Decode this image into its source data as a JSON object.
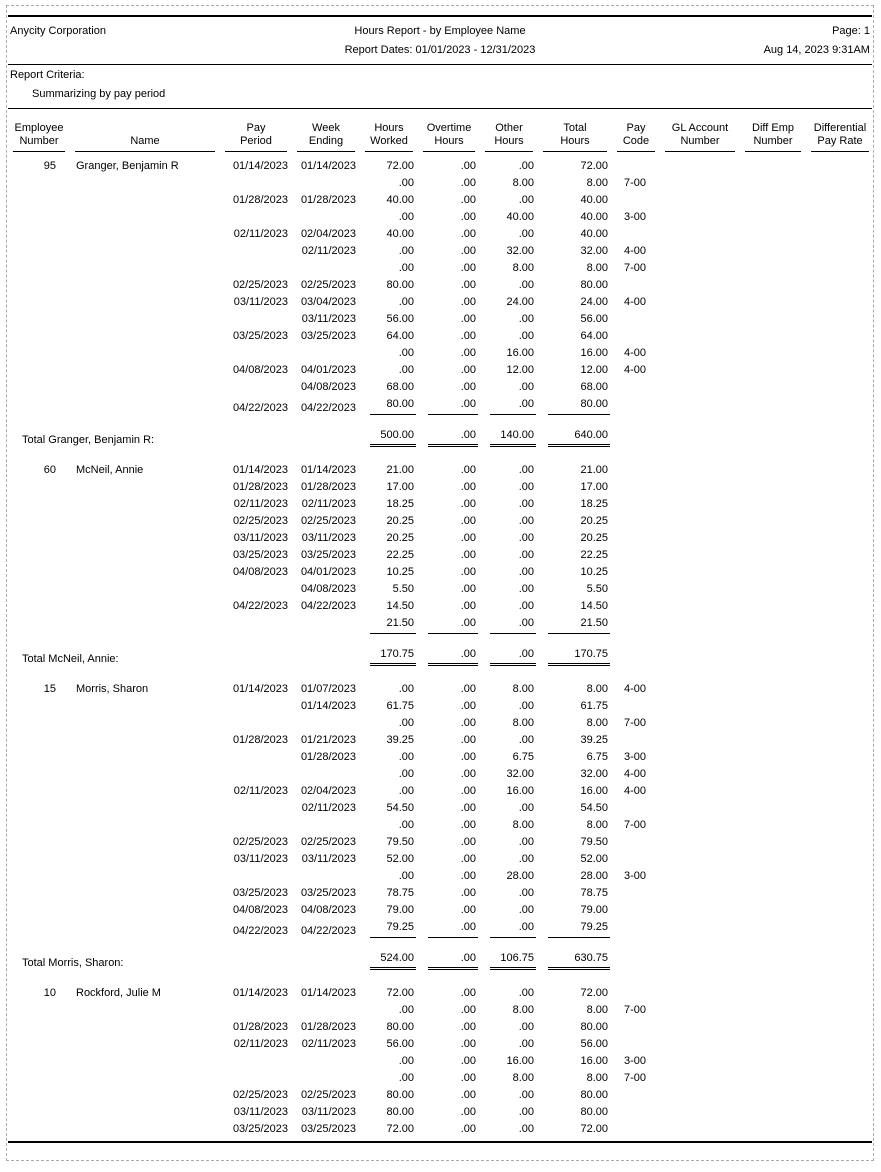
{
  "page": {
    "company": "Anycity Corporation",
    "title": "Hours Report - by Employee Name",
    "date_range": "Report Dates: 01/01/2023 - 12/31/2023",
    "page_label": "Page: 1",
    "printed_at": "Aug 14, 2023 9:31AM",
    "criteria_label": "Report Criteria:",
    "criteria_value": "Summarizing by pay period"
  },
  "table": {
    "headers": [
      {
        "key": "employee-number",
        "line1": "Employee",
        "line2": "Number"
      },
      {
        "key": "name",
        "line1": "",
        "line2": "Name"
      },
      {
        "key": "pay-period",
        "line1": "Pay",
        "line2": "Period"
      },
      {
        "key": "week-ending",
        "line1": "Week",
        "line2": "Ending"
      },
      {
        "key": "hours-worked",
        "line1": "Hours",
        "line2": "Worked"
      },
      {
        "key": "overtime-hours",
        "line1": "Overtime",
        "line2": "Hours"
      },
      {
        "key": "other-hours",
        "line1": "Other",
        "line2": "Hours"
      },
      {
        "key": "total-hours",
        "line1": "Total",
        "line2": "Hours"
      },
      {
        "key": "pay-code",
        "line1": "Pay",
        "line2": "Code"
      },
      {
        "key": "gl-account-number",
        "line1": "GL Account",
        "line2": "Number"
      },
      {
        "key": "diff-emp-number",
        "line1": "Diff Emp",
        "line2": "Number"
      },
      {
        "key": "differential-pay-rate",
        "line1": "Differential",
        "line2": "Pay Rate"
      }
    ],
    "groups": [
      {
        "employee_number": "95",
        "name": "Granger, Benjamin R",
        "rows": [
          [
            "01/14/2023",
            "01/14/2023",
            "72.00",
            ".00",
            ".00",
            "72.00",
            ""
          ],
          [
            "",
            "",
            ".00",
            ".00",
            "8.00",
            "8.00",
            "7-00"
          ],
          [
            "01/28/2023",
            "01/28/2023",
            "40.00",
            ".00",
            ".00",
            "40.00",
            ""
          ],
          [
            "",
            "",
            ".00",
            ".00",
            "40.00",
            "40.00",
            "3-00"
          ],
          [
            "02/11/2023",
            "02/04/2023",
            "40.00",
            ".00",
            ".00",
            "40.00",
            ""
          ],
          [
            "",
            "02/11/2023",
            ".00",
            ".00",
            "32.00",
            "32.00",
            "4-00"
          ],
          [
            "",
            "",
            ".00",
            ".00",
            "8.00",
            "8.00",
            "7-00"
          ],
          [
            "02/25/2023",
            "02/25/2023",
            "80.00",
            ".00",
            ".00",
            "80.00",
            ""
          ],
          [
            "03/11/2023",
            "03/04/2023",
            ".00",
            ".00",
            "24.00",
            "24.00",
            "4-00"
          ],
          [
            "",
            "03/11/2023",
            "56.00",
            ".00",
            ".00",
            "56.00",
            ""
          ],
          [
            "03/25/2023",
            "03/25/2023",
            "64.00",
            ".00",
            ".00",
            "64.00",
            ""
          ],
          [
            "",
            "",
            ".00",
            ".00",
            "16.00",
            "16.00",
            "4-00"
          ],
          [
            "04/08/2023",
            "04/01/2023",
            ".00",
            ".00",
            "12.00",
            "12.00",
            "4-00"
          ],
          [
            "",
            "04/08/2023",
            "68.00",
            ".00",
            ".00",
            "68.00",
            ""
          ],
          [
            "04/22/2023",
            "04/22/2023",
            "80.00",
            ".00",
            ".00",
            "80.00",
            ""
          ]
        ],
        "total_label": "Total Granger, Benjamin R:",
        "totals": [
          "500.00",
          ".00",
          "140.00",
          "640.00"
        ]
      },
      {
        "employee_number": "60",
        "name": "McNeil, Annie",
        "rows": [
          [
            "01/14/2023",
            "01/14/2023",
            "21.00",
            ".00",
            ".00",
            "21.00",
            ""
          ],
          [
            "01/28/2023",
            "01/28/2023",
            "17.00",
            ".00",
            ".00",
            "17.00",
            ""
          ],
          [
            "02/11/2023",
            "02/11/2023",
            "18.25",
            ".00",
            ".00",
            "18.25",
            ""
          ],
          [
            "02/25/2023",
            "02/25/2023",
            "20.25",
            ".00",
            ".00",
            "20.25",
            ""
          ],
          [
            "03/11/2023",
            "03/11/2023",
            "20.25",
            ".00",
            ".00",
            "20.25",
            ""
          ],
          [
            "03/25/2023",
            "03/25/2023",
            "22.25",
            ".00",
            ".00",
            "22.25",
            ""
          ],
          [
            "04/08/2023",
            "04/01/2023",
            "10.25",
            ".00",
            ".00",
            "10.25",
            ""
          ],
          [
            "",
            "04/08/2023",
            "5.50",
            ".00",
            ".00",
            "5.50",
            ""
          ],
          [
            "04/22/2023",
            "04/22/2023",
            "14.50",
            ".00",
            ".00",
            "14.50",
            ""
          ],
          [
            "",
            "",
            "21.50",
            ".00",
            ".00",
            "21.50",
            ""
          ]
        ],
        "total_label": "Total McNeil, Annie:",
        "totals": [
          "170.75",
          ".00",
          ".00",
          "170.75"
        ]
      },
      {
        "employee_number": "15",
        "name": "Morris, Sharon",
        "rows": [
          [
            "01/14/2023",
            "01/07/2023",
            ".00",
            ".00",
            "8.00",
            "8.00",
            "4-00"
          ],
          [
            "",
            "01/14/2023",
            "61.75",
            ".00",
            ".00",
            "61.75",
            ""
          ],
          [
            "",
            "",
            ".00",
            ".00",
            "8.00",
            "8.00",
            "7-00"
          ],
          [
            "01/28/2023",
            "01/21/2023",
            "39.25",
            ".00",
            ".00",
            "39.25",
            ""
          ],
          [
            "",
            "01/28/2023",
            ".00",
            ".00",
            "6.75",
            "6.75",
            "3-00"
          ],
          [
            "",
            "",
            ".00",
            ".00",
            "32.00",
            "32.00",
            "4-00"
          ],
          [
            "02/11/2023",
            "02/04/2023",
            ".00",
            ".00",
            "16.00",
            "16.00",
            "4-00"
          ],
          [
            "",
            "02/11/2023",
            "54.50",
            ".00",
            ".00",
            "54.50",
            ""
          ],
          [
            "",
            "",
            ".00",
            ".00",
            "8.00",
            "8.00",
            "7-00"
          ],
          [
            "02/25/2023",
            "02/25/2023",
            "79.50",
            ".00",
            ".00",
            "79.50",
            ""
          ],
          [
            "03/11/2023",
            "03/11/2023",
            "52.00",
            ".00",
            ".00",
            "52.00",
            ""
          ],
          [
            "",
            "",
            ".00",
            ".00",
            "28.00",
            "28.00",
            "3-00"
          ],
          [
            "03/25/2023",
            "03/25/2023",
            "78.75",
            ".00",
            ".00",
            "78.75",
            ""
          ],
          [
            "04/08/2023",
            "04/08/2023",
            "79.00",
            ".00",
            ".00",
            "79.00",
            ""
          ],
          [
            "04/22/2023",
            "04/22/2023",
            "79.25",
            ".00",
            ".00",
            "79.25",
            ""
          ]
        ],
        "total_label": "Total Morris, Sharon:",
        "totals": [
          "524.00",
          ".00",
          "106.75",
          "630.75"
        ]
      },
      {
        "employee_number": "10",
        "name": "Rockford, Julie M",
        "rows": [
          [
            "01/14/2023",
            "01/14/2023",
            "72.00",
            ".00",
            ".00",
            "72.00",
            ""
          ],
          [
            "",
            "",
            ".00",
            ".00",
            "8.00",
            "8.00",
            "7-00"
          ],
          [
            "01/28/2023",
            "01/28/2023",
            "80.00",
            ".00",
            ".00",
            "80.00",
            ""
          ],
          [
            "02/11/2023",
            "02/11/2023",
            "56.00",
            ".00",
            ".00",
            "56.00",
            ""
          ],
          [
            "",
            "",
            ".00",
            ".00",
            "16.00",
            "16.00",
            "3-00"
          ],
          [
            "",
            "",
            ".00",
            ".00",
            "8.00",
            "8.00",
            "7-00"
          ],
          [
            "02/25/2023",
            "02/25/2023",
            "80.00",
            ".00",
            ".00",
            "80.00",
            ""
          ],
          [
            "03/11/2023",
            "03/11/2023",
            "80.00",
            ".00",
            ".00",
            "80.00",
            ""
          ],
          [
            "03/25/2023",
            "03/25/2023",
            "72.00",
            ".00",
            ".00",
            "72.00",
            ""
          ]
        ],
        "total_label": null,
        "totals": null
      }
    ]
  }
}
